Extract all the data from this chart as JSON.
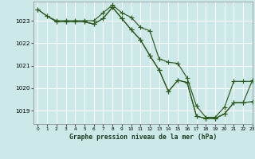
{
  "background_color": "#cce8e8",
  "grid_color": "#ffffff",
  "line_color": "#2d5a1b",
  "title": "Graphe pression niveau de la mer (hPa)",
  "xlim": [
    -0.5,
    23
  ],
  "ylim": [
    1018.4,
    1023.85
  ],
  "yticks": [
    1019,
    1020,
    1021,
    1022,
    1023
  ],
  "xticks": [
    0,
    1,
    2,
    3,
    4,
    5,
    6,
    7,
    8,
    9,
    10,
    11,
    12,
    13,
    14,
    15,
    16,
    17,
    18,
    19,
    20,
    21,
    22,
    23
  ],
  "series1_x": [
    0,
    1,
    2,
    3,
    4,
    5,
    6,
    7,
    8,
    9,
    10,
    11,
    12,
    13,
    14,
    15,
    16,
    17,
    18,
    19,
    20,
    21,
    22,
    23
  ],
  "series1_y": [
    1023.5,
    1023.2,
    1023.0,
    1023.0,
    1023.0,
    1023.0,
    1023.0,
    1023.35,
    1023.7,
    1023.35,
    1023.15,
    1022.7,
    1022.55,
    1021.3,
    1021.15,
    1021.1,
    1020.45,
    1019.2,
    1018.7,
    1018.7,
    1019.15,
    1020.3,
    1020.3,
    1020.3
  ],
  "series2_x": [
    0,
    1,
    2,
    3,
    4,
    5,
    6,
    7,
    8,
    9,
    10,
    11,
    12,
    13,
    14,
    15,
    16,
    17,
    18,
    19,
    20,
    21,
    22,
    23
  ],
  "series2_y": [
    1023.5,
    1023.2,
    1022.95,
    1022.95,
    1022.95,
    1022.95,
    1022.85,
    1023.1,
    1023.6,
    1023.1,
    1022.6,
    1022.15,
    1021.45,
    1020.8,
    1019.85,
    1020.35,
    1020.25,
    1018.75,
    1018.65,
    1018.65,
    1018.85,
    1019.35,
    1019.35,
    1019.4
  ],
  "series3_x": [
    2,
    3,
    4,
    5,
    6,
    7,
    8,
    9,
    10,
    11,
    12,
    13,
    14,
    15,
    16,
    17,
    18,
    19,
    20,
    21,
    22,
    23
  ],
  "series3_y": [
    1022.95,
    1022.95,
    1022.95,
    1022.95,
    1022.85,
    1023.1,
    1023.6,
    1023.1,
    1022.6,
    1022.15,
    1021.45,
    1020.8,
    1019.85,
    1020.35,
    1020.25,
    1018.75,
    1018.65,
    1018.65,
    1018.85,
    1019.35,
    1019.35,
    1020.35
  ]
}
